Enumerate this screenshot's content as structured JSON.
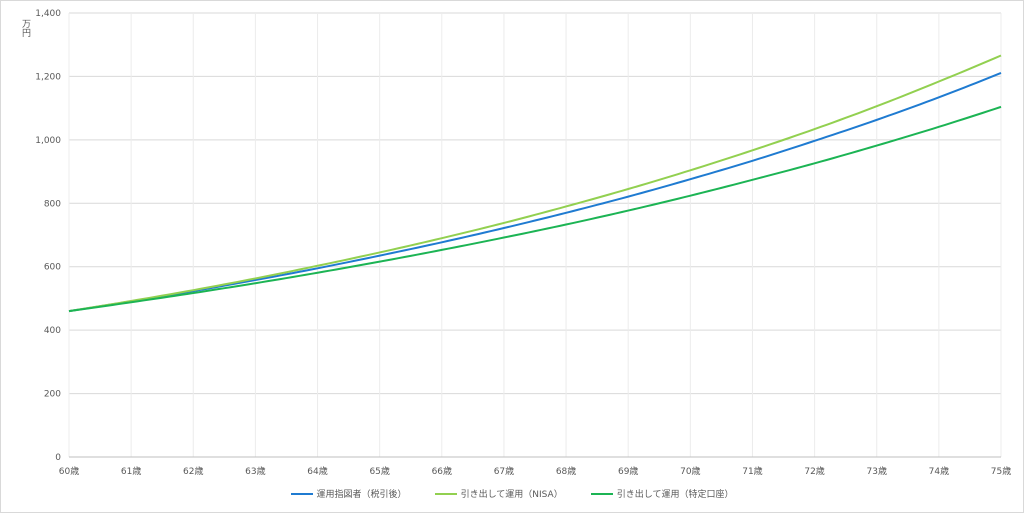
{
  "chart_data": {
    "type": "line",
    "title": "",
    "xlabel": "",
    "ylabel": "万円",
    "ylim": [
      0,
      1400
    ],
    "yticks": [
      "0",
      "200",
      "400",
      "600",
      "800",
      "1,000",
      "1,200",
      "1,400"
    ],
    "ytick_values": [
      0,
      200,
      400,
      600,
      800,
      1000,
      1200,
      1400
    ],
    "categories": [
      "60歳",
      "61歳",
      "62歳",
      "63歳",
      "64歳",
      "65歳",
      "66歳",
      "67歳",
      "68歳",
      "69歳",
      "70歳",
      "71歳",
      "72歳",
      "73歳",
      "74歳",
      "75歳"
    ],
    "grid": true,
    "legend_position": "bottom",
    "series": [
      {
        "name": "運用指図者（税引後）",
        "color": "#1f7bd1",
        "values": [
          460,
          491,
          523,
          558,
          595,
          635,
          677,
          722,
          770,
          821,
          876,
          934,
          997,
          1063,
          1134,
          1211
        ]
      },
      {
        "name": "引き出して運用（NISA）",
        "color": "#92d050",
        "values": [
          460,
          492,
          526,
          563,
          603,
          645,
          690,
          738,
          790,
          845,
          904,
          967,
          1034,
          1106,
          1184,
          1266
        ]
      },
      {
        "name": "引き出して運用（特定口座）",
        "color": "#1cb454",
        "values": [
          460,
          488,
          517,
          548,
          581,
          616,
          653,
          692,
          733,
          777,
          824,
          874,
          926,
          982,
          1041,
          1104
        ]
      }
    ]
  }
}
